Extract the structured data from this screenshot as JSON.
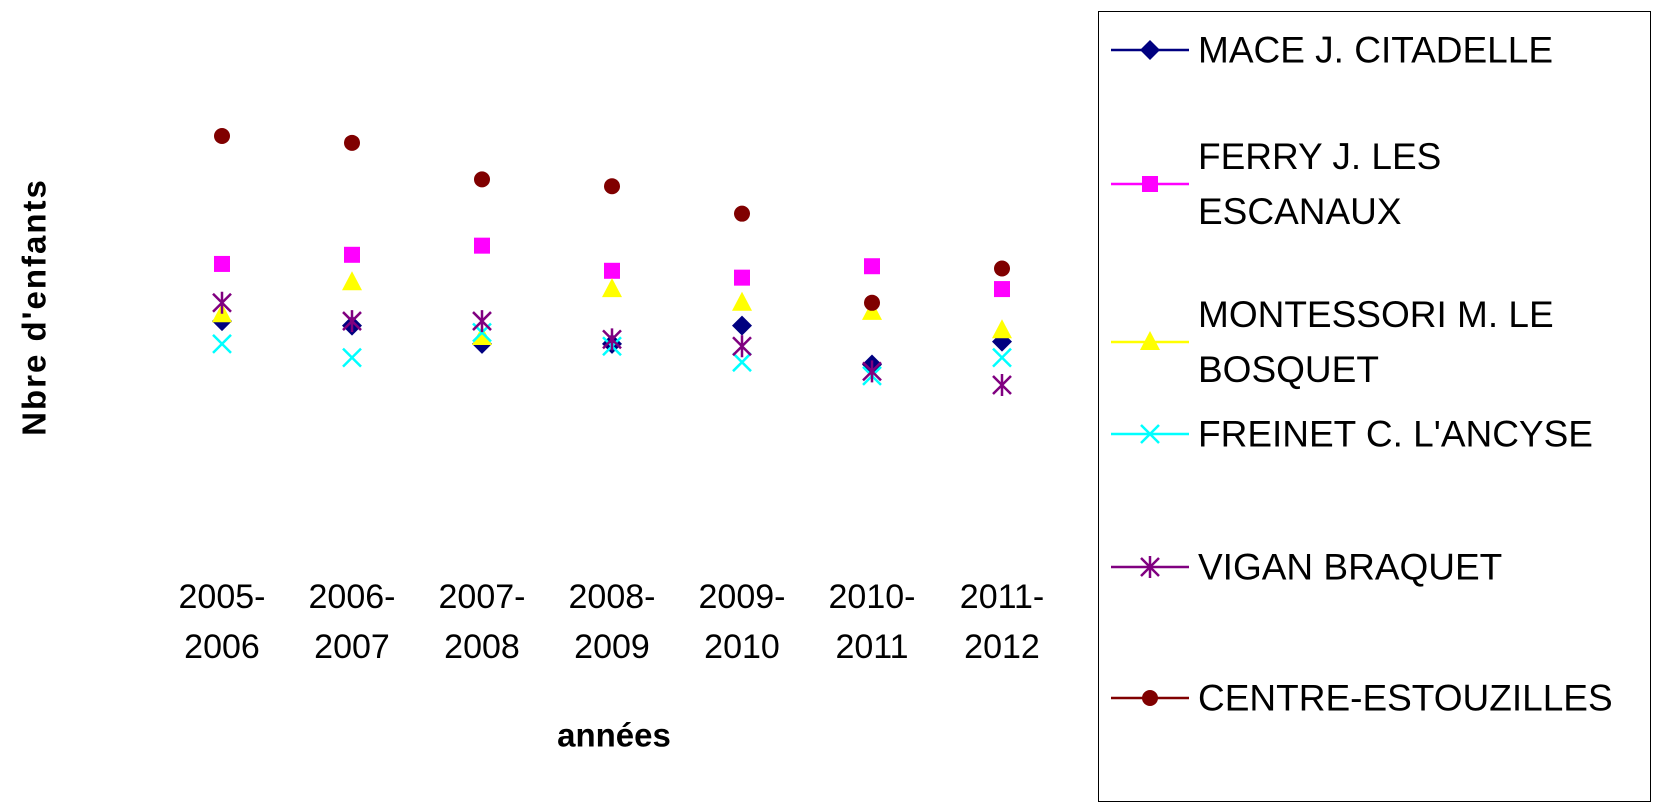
{
  "chart_data": {
    "type": "line",
    "y_label": "Nbre d'enfants",
    "x_label": "années",
    "categories": [
      "2005-2006",
      "2006-2007",
      "2007-2008",
      "2008-2009",
      "2009-2010",
      "2010-2011",
      "2011-2012"
    ],
    "series": [
      {
        "name": "MACE J.  CITADELLE",
        "color": "#000080",
        "marker": "diamond",
        "values": [
          91,
          89,
          81,
          81,
          89,
          72,
          82
        ]
      },
      {
        "name": "FERRY J. LES ESCANAUX",
        "color": "#ff00ff",
        "marker": "square",
        "values": [
          116,
          120,
          124,
          113,
          110,
          115,
          105
        ]
      },
      {
        "name": "MONTESSORI M. LE BOSQUET",
        "color": "#ffff00",
        "marker": "triangle",
        "values": [
          94,
          108,
          84,
          105,
          99,
          95,
          87
        ]
      },
      {
        "name": "FREINET C. L'ANCYSE",
        "color": "#00ffff",
        "marker": "x",
        "values": [
          81,
          75,
          86,
          80,
          73,
          67,
          75
        ]
      },
      {
        "name": "VIGAN BRAQUET",
        "color": "#800080",
        "marker": "asterisk",
        "values": [
          99,
          91,
          91,
          83,
          80,
          69,
          63
        ]
      },
      {
        "name": "CENTRE-ESTOUZILLES",
        "color": "#800000",
        "marker": "circle",
        "values": [
          172,
          169,
          153,
          150,
          138,
          99,
          114
        ]
      }
    ],
    "ylim": [
      0,
      200
    ],
    "yticks": [
      0,
      50,
      100,
      150,
      200
    ],
    "grid": true,
    "plot_background": "#c0c0c0",
    "legend": "right"
  }
}
